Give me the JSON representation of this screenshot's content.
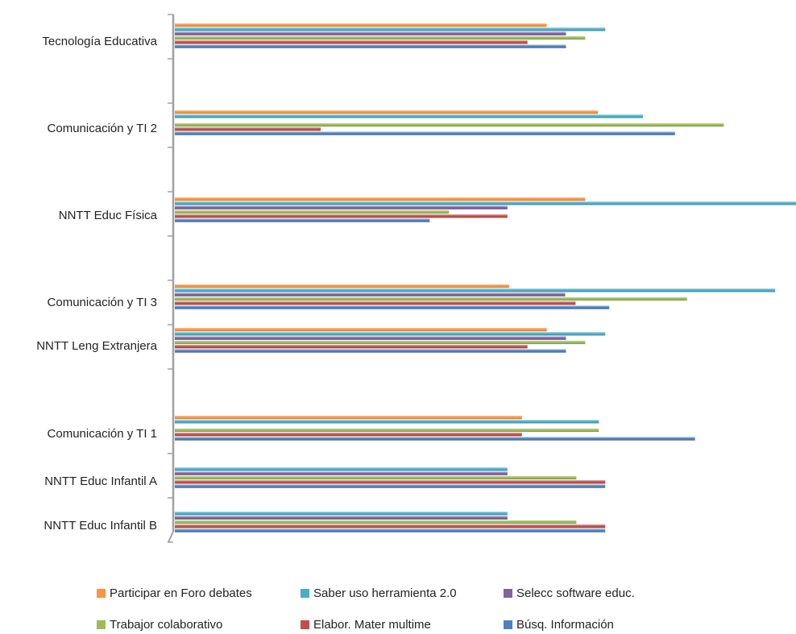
{
  "chart_data": {
    "type": "bar",
    "orientation": "horizontal",
    "categories": [
      "Tecnología Educativa",
      "Comunicación y TI 2",
      "NNTT Educ Física",
      "Comunicación y TI 3",
      "NNTT Leng Extranjera",
      "Comunicación y TI 1",
      "NNTT Educ Infantil A",
      "NNTT Educ Infantil B"
    ],
    "series": [
      {
        "name": "Participar en Foro debates",
        "color": "#f79646",
        "values": [
          464,
          528,
          512,
          417,
          464,
          433,
          null,
          null
        ]
      },
      {
        "name": "Saber uso herramienta 2.0",
        "color": "#4bacc6",
        "values": [
          537,
          584,
          775,
          749,
          537,
          529,
          415,
          415
        ]
      },
      {
        "name": "Selecc software educ.",
        "color": "#8064a2",
        "values": [
          488,
          null,
          415,
          487,
          488,
          null,
          415,
          415
        ]
      },
      {
        "name": "Trabajor colaborativo",
        "color": "#9bbb59",
        "values": [
          512,
          685,
          342,
          639,
          512,
          529,
          501,
          501
        ]
      },
      {
        "name": "Elabor. Mater multime",
        "color": "#c0504d",
        "values": [
          440,
          182,
          415,
          500,
          440,
          433,
          537,
          537
        ]
      },
      {
        "name": "Búsq. Información",
        "color": "#4f81bd",
        "values": [
          488,
          624,
          318,
          542,
          488,
          649,
          537,
          537
        ]
      }
    ],
    "xlim": [
      0,
      775
    ],
    "grid": false,
    "legend_position": "bottom",
    "title": "",
    "xlabel": "",
    "ylabel": ""
  }
}
